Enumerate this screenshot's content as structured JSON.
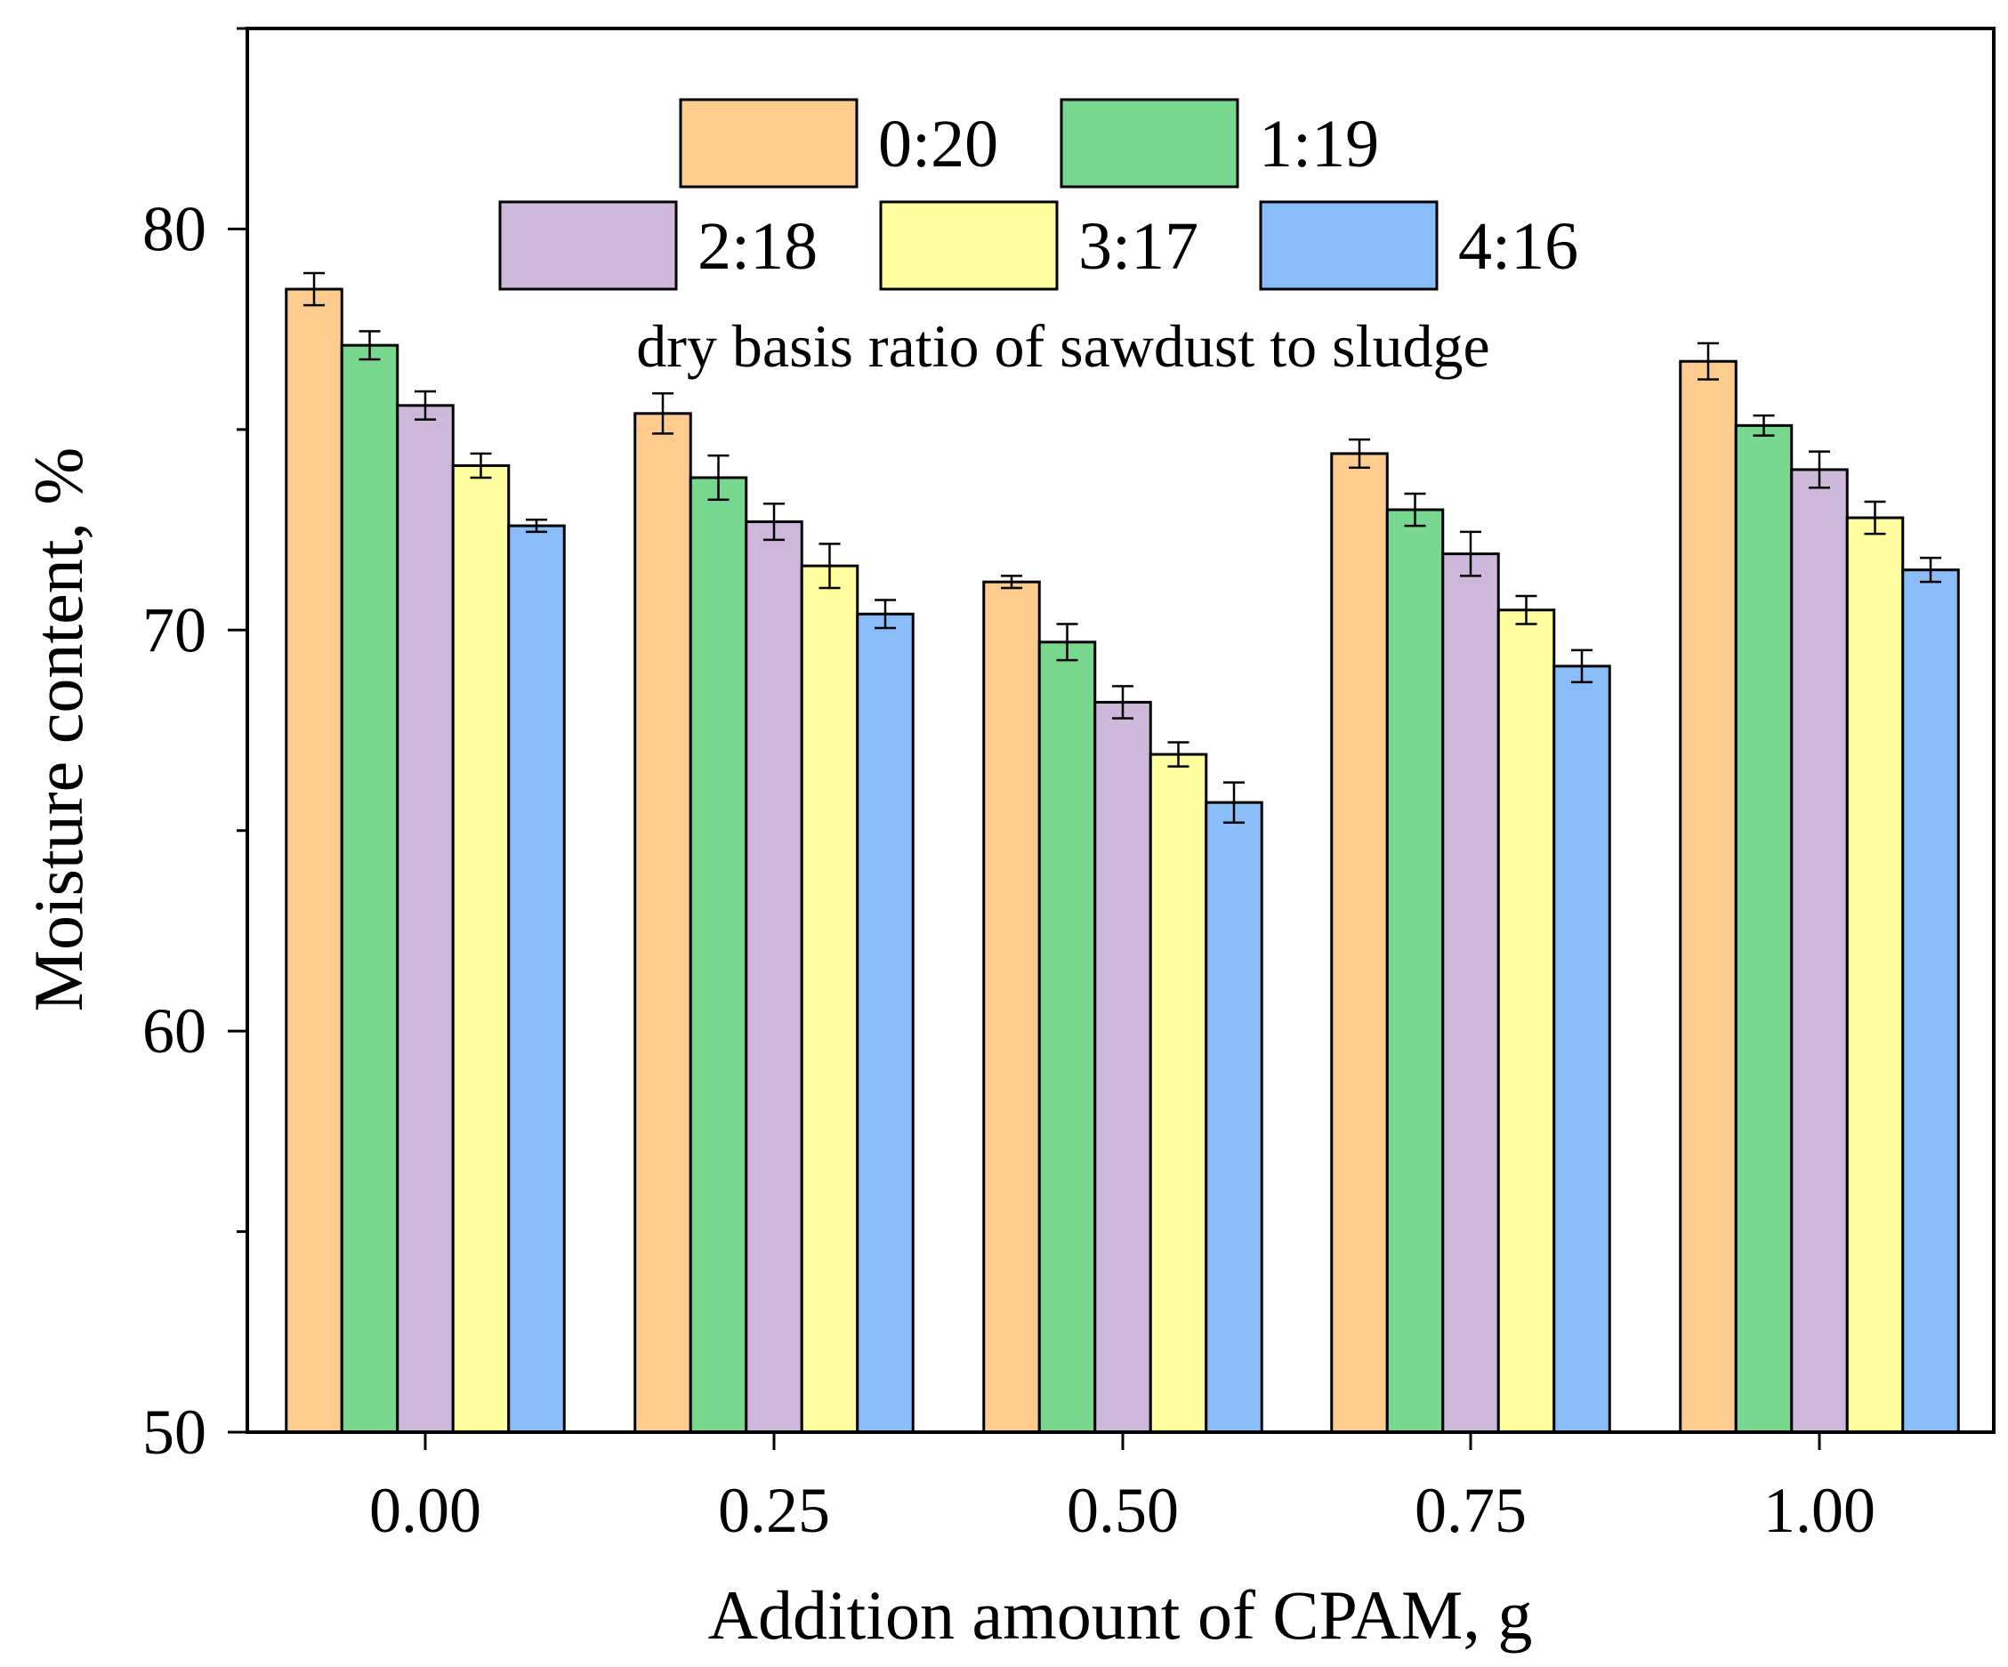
{
  "chart_data": {
    "type": "bar",
    "categories": [
      "0.00",
      "0.25",
      "0.50",
      "0.75",
      "1.00"
    ],
    "series": [
      {
        "name": "0:20",
        "color": "#FFCC90",
        "values": [
          78.5,
          75.4,
          71.2,
          74.4,
          76.7
        ],
        "errors": [
          0.4,
          0.5,
          0.15,
          0.35,
          0.45
        ]
      },
      {
        "name": "1:19",
        "color": "#78D890",
        "values": [
          77.1,
          73.8,
          69.7,
          73.0,
          75.1
        ],
        "errors": [
          0.35,
          0.55,
          0.45,
          0.4,
          0.25
        ]
      },
      {
        "name": "2:18",
        "color": "#CDB8DC",
        "values": [
          75.6,
          72.7,
          68.2,
          71.9,
          74.0
        ],
        "errors": [
          0.35,
          0.45,
          0.4,
          0.55,
          0.45
        ]
      },
      {
        "name": "3:17",
        "color": "#FFFFA0",
        "values": [
          74.1,
          71.6,
          66.9,
          70.5,
          72.8
        ],
        "errors": [
          0.3,
          0.55,
          0.3,
          0.35,
          0.4
        ]
      },
      {
        "name": "4:16",
        "color": "#8ABDF8",
        "values": [
          72.6,
          70.4,
          65.7,
          69.1,
          71.5
        ],
        "errors": [
          0.15,
          0.35,
          0.5,
          0.4,
          0.3
        ]
      }
    ],
    "title": "",
    "xlabel": "Addition amount of CPAM, g",
    "ylabel": "Moisture content, %",
    "ylim": [
      50,
      85
    ],
    "yticks": [
      50,
      60,
      70,
      80
    ],
    "ytick_labels": [
      "50",
      "60",
      "70",
      "80"
    ],
    "legend_title": "dry basis ratio of sawdust to sludge",
    "legend_position": "top-center",
    "grid": false
  }
}
